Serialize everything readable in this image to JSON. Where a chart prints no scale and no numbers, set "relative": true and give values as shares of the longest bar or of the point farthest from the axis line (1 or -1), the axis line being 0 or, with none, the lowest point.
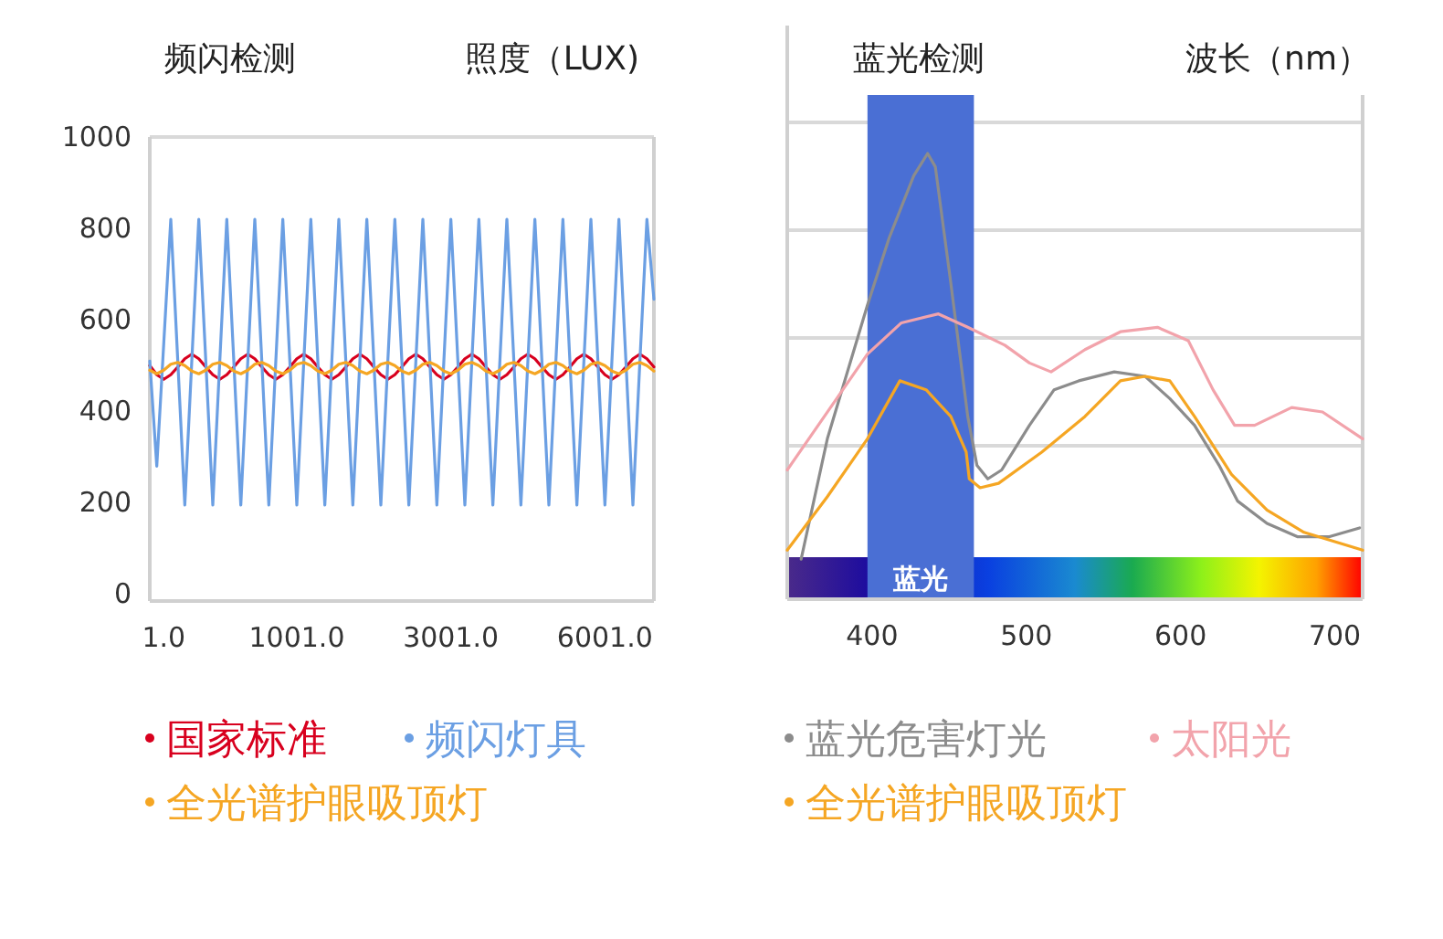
{
  "chart_data": [
    {
      "type": "line",
      "title": "频闪检测",
      "ylabel": "照度（LUX)",
      "ylim": [
        -15,
        1000
      ],
      "categories": [
        null,
        null,
        "1.0",
        null,
        null,
        null,
        null,
        null,
        null,
        null,
        null,
        null,
        null,
        null,
        null,
        null,
        null,
        null,
        null,
        null,
        null,
        "1001.0",
        null,
        null,
        null,
        null,
        null,
        null,
        null,
        null,
        null,
        null,
        null,
        null,
        null,
        null,
        null,
        null,
        null,
        null,
        null,
        null,
        null,
        "3001.0",
        null,
        null,
        null,
        null,
        null,
        null,
        null,
        null,
        null,
        null,
        null,
        null,
        null,
        null,
        null,
        null,
        null,
        null,
        null,
        null,
        null,
        "6001.0",
        null,
        null,
        null,
        null,
        null,
        null,
        null
      ],
      "yticks": [
        0,
        200,
        400,
        600,
        800,
        1000
      ],
      "legend": "bottom",
      "grid": false,
      "series": [
        {
          "name": "国家标准",
          "color": "#d8001e",
          "values": [
            500,
            480,
            470,
            480,
            497,
            515,
            525,
            515,
            497,
            480,
            470,
            480,
            497,
            515,
            525,
            515,
            497,
            480,
            470,
            480,
            497,
            515,
            525,
            515,
            497,
            480,
            470,
            480,
            497,
            515,
            525,
            515,
            497,
            480,
            470,
            480,
            497,
            515,
            525,
            515,
            497,
            480,
            470,
            480,
            497,
            515,
            525,
            515,
            497,
            480,
            470,
            480,
            497,
            515,
            525,
            515,
            497,
            480,
            470,
            480,
            497,
            515,
            525,
            515,
            497,
            480,
            470,
            480,
            497,
            515,
            525,
            515,
            497
          ]
        },
        {
          "name": "频闪灯具",
          "color": "#6b9fe3",
          "values": [
            510,
            280,
            550,
            820,
            510,
            195,
            510,
            820,
            510,
            195,
            510,
            820,
            510,
            195,
            510,
            820,
            510,
            195,
            510,
            820,
            510,
            195,
            510,
            820,
            510,
            195,
            510,
            820,
            510,
            195,
            510,
            820,
            510,
            195,
            510,
            820,
            510,
            195,
            510,
            820,
            510,
            195,
            510,
            820,
            510,
            195,
            510,
            820,
            510,
            195,
            510,
            820,
            510,
            195,
            510,
            820,
            510,
            195,
            510,
            820,
            510,
            195,
            510,
            820,
            510,
            195,
            510,
            820,
            510,
            195,
            510,
            820,
            645
          ]
        },
        {
          "name": "全光谱护眼吸顶灯",
          "color": "#f5a623",
          "values": [
            490,
            482,
            490,
            503,
            507,
            500,
            488,
            482,
            490,
            503,
            507,
            500,
            488,
            482,
            490,
            503,
            507,
            500,
            488,
            482,
            490,
            503,
            507,
            500,
            488,
            482,
            490,
            503,
            507,
            500,
            488,
            482,
            490,
            503,
            507,
            500,
            488,
            482,
            490,
            503,
            507,
            500,
            488,
            482,
            490,
            503,
            507,
            500,
            488,
            482,
            490,
            503,
            507,
            500,
            488,
            482,
            490,
            503,
            507,
            500,
            488,
            482,
            490,
            503,
            507,
            500,
            488,
            482,
            490,
            503,
            507,
            500,
            488
          ]
        }
      ]
    },
    {
      "type": "line",
      "relative": true,
      "title": "蓝光检测",
      "xlabel": "波长（nm）",
      "xlim": [
        345,
        718
      ],
      "xticks": [
        400,
        500,
        600,
        700
      ],
      "grid": true,
      "legend": "bottom",
      "bands": [
        {
          "axis": "x",
          "from": 397,
          "to": 466,
          "color": "#4a6fd4"
        }
      ],
      "annotations": [
        "蓝光"
      ],
      "series": [
        {
          "name": "蓝光危害灯光",
          "color": "#8c8c8c",
          "x": [
            354,
            371,
            397,
            411,
            427,
            436,
            441,
            451,
            462,
            468,
            475,
            484,
            502,
            518,
            534,
            557,
            577,
            593,
            609,
            625,
            637,
            656,
            676,
            696,
            716
          ],
          "values": [
            0.09,
            0.36,
            0.66,
            0.81,
            0.95,
            1,
            0.97,
            0.71,
            0.41,
            0.3,
            0.27,
            0.29,
            0.39,
            0.47,
            0.49,
            0.51,
            0.5,
            0.45,
            0.39,
            0.3,
            0.22,
            0.17,
            0.14,
            0.14,
            0.16
          ]
        },
        {
          "name": "太阳光",
          "color": "#f2a3ab",
          "x": [
            345,
            371,
            397,
            419,
            443,
            462,
            486,
            502,
            516,
            538,
            561,
            585,
            605,
            621,
            635,
            648,
            672,
            692,
            718
          ],
          "values": [
            0.29,
            0.42,
            0.55,
            0.62,
            0.64,
            0.61,
            0.57,
            0.53,
            0.51,
            0.56,
            0.6,
            0.61,
            0.58,
            0.47,
            0.39,
            0.39,
            0.43,
            0.42,
            0.36
          ]
        },
        {
          "name": "全光谱护眼吸顶灯",
          "color": "#f5a623",
          "x": [
            345,
            371,
            397,
            418,
            435,
            451,
            461,
            463,
            470,
            482,
            510,
            538,
            561,
            577,
            593,
            609,
            633,
            656,
            680,
            718
          ],
          "values": [
            0.11,
            0.23,
            0.36,
            0.49,
            0.47,
            0.41,
            0.33,
            0.27,
            0.25,
            0.26,
            0.33,
            0.41,
            0.49,
            0.5,
            0.49,
            0.41,
            0.28,
            0.2,
            0.15,
            0.11
          ]
        }
      ]
    }
  ]
}
